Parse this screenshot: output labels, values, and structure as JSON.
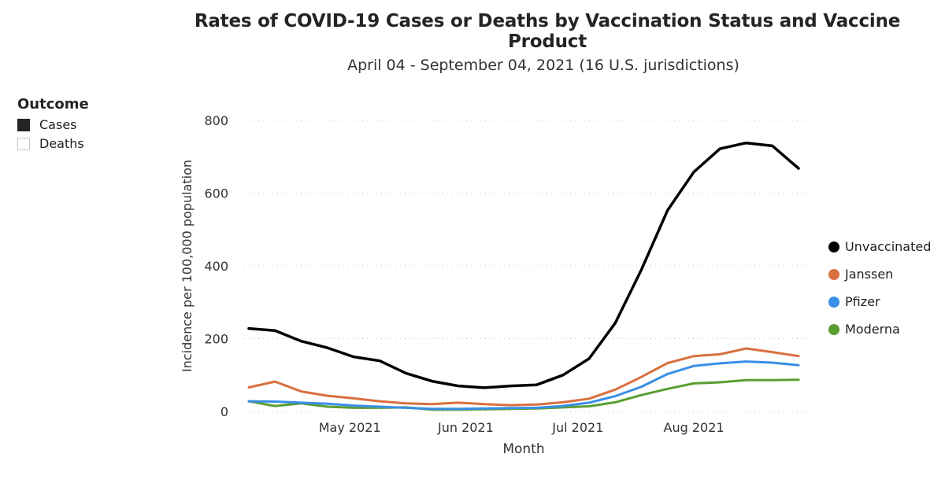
{
  "header": {
    "title": "Rates of COVID-19 Cases or Deaths by Vaccination Status and Vaccine Product",
    "subtitle": "April 04 - September 04, 2021 (16 U.S. jurisdictions)"
  },
  "outcome_filter": {
    "title": "Outcome",
    "options": [
      {
        "label": "Cases",
        "selected": true
      },
      {
        "label": "Deaths",
        "selected": false
      }
    ]
  },
  "chart_data": {
    "type": "line",
    "xlabel": "Month",
    "ylabel": "Incidence per 100,000 population",
    "ylim": [
      0,
      800
    ],
    "y_ticks": [
      "0",
      "200",
      "400",
      "600",
      "800"
    ],
    "x_tick_labels": [
      "May 2021",
      "Jun 2021",
      "Jul 2021",
      "Aug 2021"
    ],
    "grid": "horizontal dotted",
    "legend_position": "right",
    "x": [
      "2021-04-04",
      "2021-04-11",
      "2021-04-18",
      "2021-04-25",
      "2021-05-02",
      "2021-05-09",
      "2021-05-16",
      "2021-05-23",
      "2021-05-30",
      "2021-06-06",
      "2021-06-13",
      "2021-06-20",
      "2021-06-27",
      "2021-07-04",
      "2021-07-11",
      "2021-07-18",
      "2021-07-25",
      "2021-08-01",
      "2021-08-08",
      "2021-08-15",
      "2021-08-22",
      "2021-08-29"
    ],
    "series": [
      {
        "name": "Unvaccinated",
        "color": "#000000",
        "values": [
          228,
          222,
          193,
          175,
          150,
          139,
          105,
          83,
          70,
          65,
          70,
          73,
          100,
          145,
          243,
          390,
          553,
          658,
          722,
          738,
          730,
          668
        ]
      },
      {
        "name": "Janssen",
        "color": "#d9703f",
        "values": [
          66,
          82,
          55,
          43,
          36,
          28,
          22,
          20,
          24,
          20,
          17,
          19,
          25,
          35,
          60,
          95,
          133,
          152,
          157,
          173,
          163,
          152
        ]
      },
      {
        "name": "Pfizer",
        "color": "#3a8fe6",
        "values": [
          28,
          27,
          24,
          21,
          16,
          13,
          10,
          7,
          7,
          8,
          9,
          10,
          15,
          24,
          42,
          68,
          103,
          125,
          132,
          137,
          134,
          127
        ]
      },
      {
        "name": "Moderna",
        "color": "#5a9e32",
        "values": [
          28,
          15,
          22,
          13,
          10,
          10,
          11,
          5,
          5,
          6,
          7,
          8,
          11,
          14,
          25,
          45,
          62,
          77,
          80,
          86,
          86,
          87
        ]
      }
    ]
  }
}
